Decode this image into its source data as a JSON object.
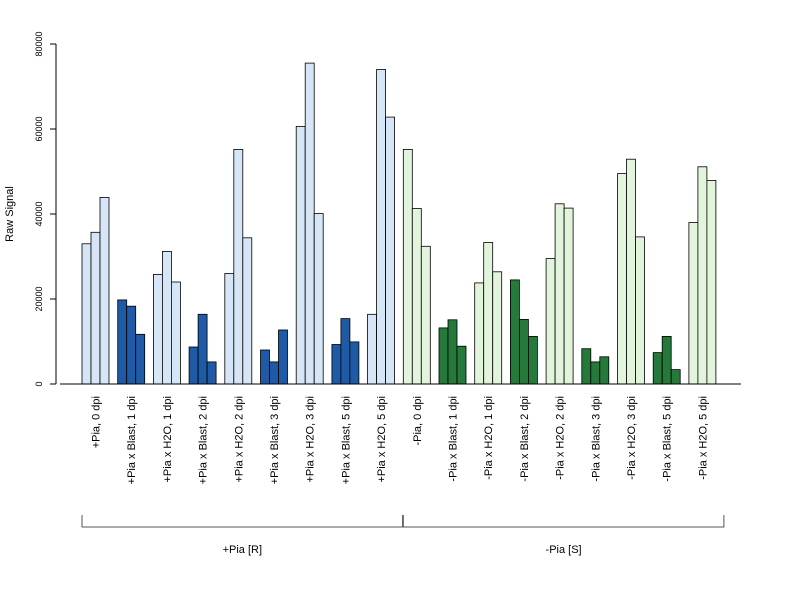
{
  "chart_data": {
    "type": "bar",
    "ylabel": "Raw Signal",
    "ylim": [
      0,
      80000
    ],
    "yticks": [
      0,
      20000,
      40000,
      60000,
      80000
    ],
    "ytick_labels": [
      "0",
      "20000",
      "40000",
      "60000",
      "80000"
    ],
    "categories": [
      "+Pia, 0 dpi",
      "+Pia x Blast, 1 dpi",
      "+Pia x H2O, 1 dpi",
      "+Pia x Blast, 2 dpi",
      "+Pia x H2O, 2 dpi",
      "+Pia x Blast, 3 dpi",
      "+Pia x H2O, 3 dpi",
      "+Pia x Blast, 5 dpi",
      "+Pia x H2O, 5 dpi",
      "-Pia, 0 dpi",
      "-Pia x Blast, 1 dpi",
      "-Pia x H2O, 1 dpi",
      "-Pia x Blast, 2 dpi",
      "-Pia x H2O, 2 dpi",
      "-Pia x Blast, 3 dpi",
      "-Pia x H2O, 3 dpi",
      "-Pia x Blast, 5 dpi",
      "-Pia x H2O, 5 dpi"
    ],
    "values": [
      [
        33000,
        35700,
        43900
      ],
      [
        19800,
        18300,
        11700
      ],
      [
        25800,
        31200,
        24000
      ],
      [
        8700,
        16400,
        5200
      ],
      [
        26000,
        55200,
        34400
      ],
      [
        8000,
        5200,
        12700
      ],
      [
        60600,
        75500,
        40100
      ],
      [
        9300,
        15400,
        9900
      ],
      [
        16400,
        74000,
        62800
      ],
      [
        55200,
        41300,
        32400
      ],
      [
        13200,
        15100,
        8900
      ],
      [
        23800,
        33300,
        26400
      ],
      [
        24500,
        15200,
        11200
      ],
      [
        29500,
        42400,
        41400
      ],
      [
        8300,
        5200,
        6400
      ],
      [
        49500,
        52900,
        34600
      ],
      [
        7400,
        11200,
        3400
      ],
      [
        38000,
        51100,
        47900
      ]
    ],
    "bar_colors": [
      "#d6e6f7",
      "#1f5aa6",
      "#d6e6f7",
      "#1f5aa6",
      "#d6e6f7",
      "#1f5aa6",
      "#d6e6f7",
      "#1f5aa6",
      "#d6e6f7",
      "#e2f5dc",
      "#25793a",
      "#e2f5dc",
      "#25793a",
      "#e2f5dc",
      "#25793a",
      "#e2f5dc",
      "#25793a",
      "#e2f5dc"
    ],
    "groups": [
      {
        "label": "+Pia [R]",
        "from": 0,
        "to": 8
      },
      {
        "label": "-Pia [S]",
        "from": 9,
        "to": 17
      }
    ]
  }
}
